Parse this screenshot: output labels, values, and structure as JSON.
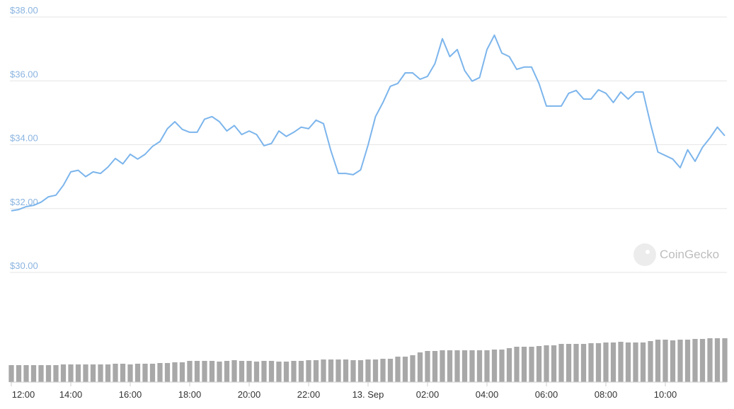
{
  "chart_data": {
    "type": "line",
    "x": [
      0,
      0.25,
      0.5,
      0.75,
      1,
      1.25,
      1.5,
      1.75,
      2,
      2.25,
      2.5,
      2.75,
      3,
      3.25,
      3.5,
      3.75,
      4,
      4.25,
      4.5,
      4.75,
      5,
      5.25,
      5.5,
      5.75,
      6,
      6.25,
      6.5,
      6.75,
      7,
      7.25,
      7.5,
      7.75,
      8,
      8.25,
      8.5,
      8.75,
      9,
      9.25,
      9.5,
      9.75,
      10,
      10.25,
      10.5,
      10.75,
      11,
      11.25,
      11.5,
      11.75,
      12,
      12.25,
      12.5,
      12.75,
      13,
      13.25,
      13.5,
      13.75,
      14,
      14.25,
      14.5,
      14.75,
      15,
      15.25,
      15.5,
      15.75,
      16,
      16.25,
      16.5,
      16.75,
      17,
      17.25,
      17.5,
      17.75,
      18,
      18.25,
      18.5,
      18.75,
      19,
      19.25,
      19.5,
      19.75,
      20,
      20.25,
      20.5,
      20.75,
      21,
      21.25,
      21.5,
      21.75,
      22,
      22.25,
      22.5,
      22.75,
      23,
      23.25,
      23.5,
      23.75,
      24
    ],
    "values": [
      31.93,
      31.97,
      32.06,
      32.1,
      32.2,
      32.37,
      32.42,
      32.73,
      33.15,
      33.2,
      33.0,
      33.15,
      33.1,
      33.3,
      33.57,
      33.4,
      33.7,
      33.55,
      33.7,
      33.95,
      34.1,
      34.5,
      34.72,
      34.48,
      34.39,
      34.39,
      34.8,
      34.88,
      34.72,
      34.43,
      34.6,
      34.32,
      34.43,
      34.32,
      33.97,
      34.04,
      34.43,
      34.26,
      34.39,
      34.55,
      34.5,
      34.77,
      34.66,
      33.81,
      33.1,
      33.1,
      33.06,
      33.21,
      33.99,
      34.88,
      35.32,
      35.83,
      35.92,
      36.25,
      36.25,
      36.05,
      36.14,
      36.54,
      37.32,
      36.76,
      36.98,
      36.32,
      35.99,
      36.1,
      36.98,
      37.43,
      36.87,
      36.76,
      36.36,
      36.43,
      36.43,
      35.92,
      35.21,
      35.21,
      35.21,
      35.61,
      35.7,
      35.43,
      35.43,
      35.72,
      35.61,
      35.32,
      35.65,
      35.43,
      35.65,
      35.65,
      34.66,
      33.77,
      33.66,
      33.55,
      33.28,
      33.84,
      33.48,
      33.92,
      34.21,
      34.55,
      34.28
    ],
    "volumes": [
      24,
      24,
      24,
      24,
      24,
      24,
      24,
      25,
      25,
      25,
      25,
      25,
      25,
      25,
      26,
      26,
      25,
      26,
      26,
      26,
      27,
      27,
      28,
      28,
      30,
      30,
      30,
      30,
      29,
      30,
      31,
      30,
      30,
      29,
      30,
      30,
      29,
      29,
      30,
      30,
      31,
      31,
      32,
      32,
      32,
      32,
      31,
      31,
      32,
      32,
      33,
      33,
      36,
      36,
      38,
      42,
      44,
      44,
      45,
      45,
      45,
      45,
      45,
      45,
      45,
      46,
      46,
      48,
      50,
      50,
      50,
      51,
      52,
      52,
      54,
      54,
      54,
      54,
      55,
      55,
      56,
      56,
      57,
      56,
      56,
      56,
      58,
      60,
      60,
      59,
      60,
      60,
      61,
      61,
      62,
      62,
      62
    ],
    "color": "#7cb5ec",
    "volume_color": "#a8a8a8",
    "xlim": [
      0,
      24
    ],
    "xticks": [
      {
        "value": 0,
        "label": "12:00"
      },
      {
        "value": 2,
        "label": "14:00"
      },
      {
        "value": 4,
        "label": "16:00"
      },
      {
        "value": 6,
        "label": "18:00"
      },
      {
        "value": 8,
        "label": "20:00"
      },
      {
        "value": 10,
        "label": "22:00"
      },
      {
        "value": 12,
        "label": "13. Sep"
      },
      {
        "value": 14,
        "label": "02:00"
      },
      {
        "value": 16,
        "label": "04:00"
      },
      {
        "value": 18,
        "label": "06:00"
      },
      {
        "value": 20,
        "label": "08:00"
      },
      {
        "value": 22,
        "label": "10:00"
      }
    ],
    "ylim": [
      30,
      38
    ],
    "yticks": [
      {
        "value": 30,
        "label": "$30.00"
      },
      {
        "value": 32,
        "label": "$32.00"
      },
      {
        "value": 34,
        "label": "$34.00"
      },
      {
        "value": 36,
        "label": "$36.00"
      },
      {
        "value": 38,
        "label": "$38.00"
      }
    ],
    "grid": true,
    "watermark": "CoinGecko"
  }
}
